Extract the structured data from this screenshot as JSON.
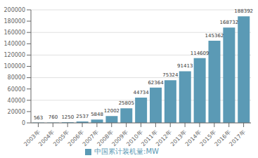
{
  "chart_data": {
    "type": "bar",
    "categories": [
      "2003年",
      "2004年",
      "2005年",
      "2006年",
      "2007年",
      "2008年",
      "2009年",
      "2010年",
      "2011年",
      "2012年",
      "2013年",
      "2014年",
      "2015年",
      "2016年",
      "2017年"
    ],
    "series": [
      {
        "name": "中国累计装机量:MW",
        "color": "#5b9ab5",
        "values": [
          563,
          760,
          1250,
          2537,
          5848,
          12002,
          25805,
          44734,
          62364,
          75324,
          91413,
          114609,
          145362,
          168732,
          188392
        ]
      }
    ],
    "ylim": [
      0,
      200000
    ],
    "yticks": [
      0,
      20000,
      40000,
      60000,
      80000,
      100000,
      120000,
      140000,
      160000,
      180000,
      200000
    ],
    "grid": true,
    "data_labels": true,
    "legend": "bottom"
  }
}
